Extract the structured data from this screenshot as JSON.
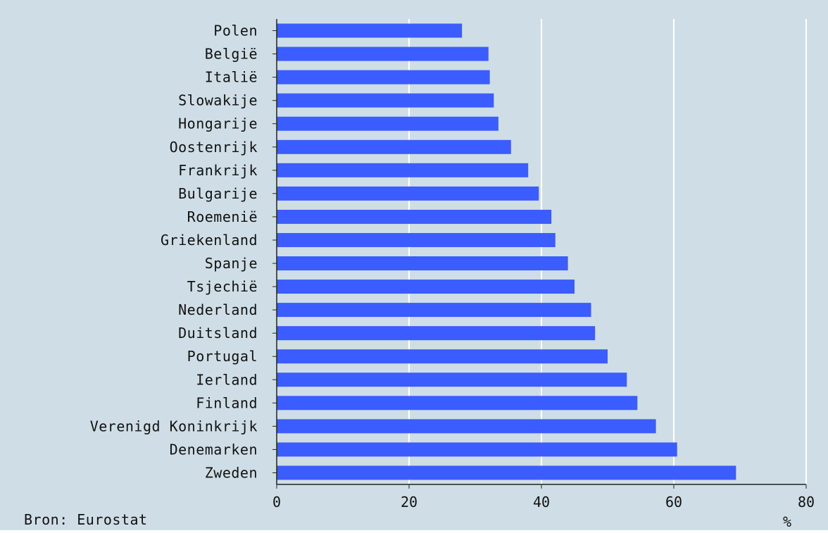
{
  "chart_data": {
    "type": "bar",
    "orientation": "horizontal",
    "categories": [
      "Polen",
      "België",
      "Italië",
      "Slowakije",
      "Hongarije",
      "Oostenrijk",
      "Frankrijk",
      "Bulgarije",
      "Roemenië",
      "Griekenland",
      "Spanje",
      "Tsjechië",
      "Nederland",
      "Duitsland",
      "Portugal",
      "Ierland",
      "Finland",
      "Verenigd Koninkrijk",
      "Denemarken",
      "Zweden"
    ],
    "values": [
      28,
      32,
      32.2,
      32.8,
      33.5,
      35.4,
      38,
      39.6,
      41.5,
      42.1,
      44,
      45,
      47.5,
      48.1,
      50,
      52.9,
      54.5,
      57.3,
      60.5,
      69.4
    ],
    "xticks": [
      0,
      20,
      40,
      60,
      80
    ],
    "xlim": [
      0,
      80
    ],
    "xunit": "%",
    "grid": "vertical",
    "bar_color": "#3b5cff",
    "plot_background": "#cfdee6",
    "grid_color": "#ffffff"
  },
  "footer": {
    "source": "Bron: Eurostat"
  }
}
